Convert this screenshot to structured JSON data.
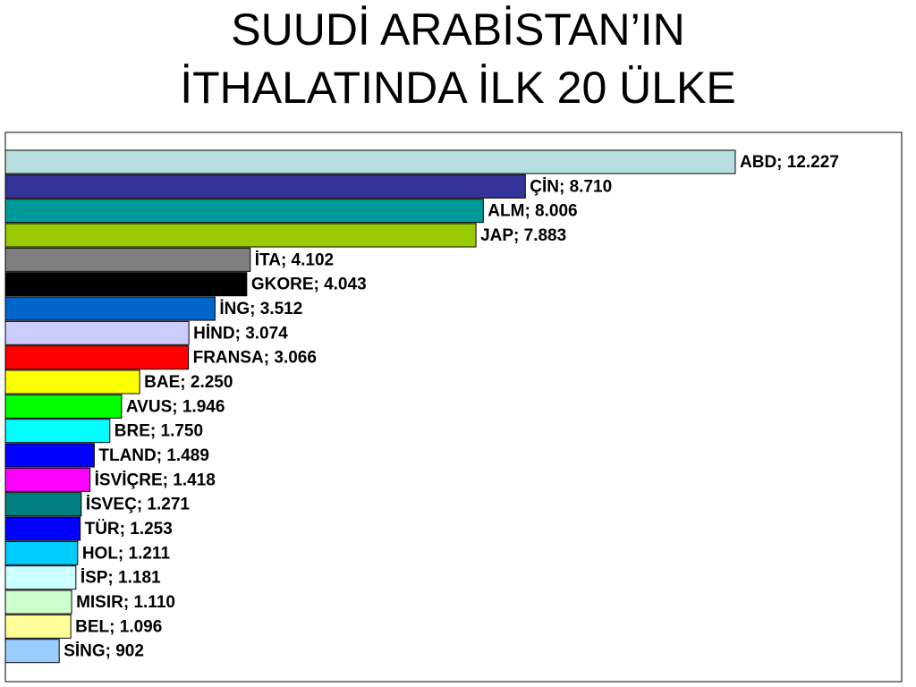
{
  "chart_data": {
    "type": "bar",
    "orientation": "horizontal",
    "title": [
      "SUUDİ ARABİSTAN’IN",
      "İTHALATINDA İLK 20 ÜLKE"
    ],
    "values": [
      12227,
      8710,
      8006,
      7883,
      4102,
      4043,
      3512,
      3074,
      3066,
      2250,
      1946,
      1750,
      1489,
      1418,
      1271,
      1253,
      1211,
      1181,
      1110,
      1096,
      902
    ],
    "value_labels": [
      "ABD; 12.227",
      "ÇİN; 8.710",
      "ALM; 8.006",
      "JAP; 7.883",
      "İTA; 4.102",
      "GKORE; 4.043",
      "İNG; 3.512",
      "HİND; 3.074",
      "FRANSA; 3.066",
      "BAE; 2.250",
      "AVUS; 1.946",
      "BRE; 1.750",
      "TLAND; 1.489",
      "İSVİÇRE; 1.418",
      "İSVEÇ; 1.271",
      "TÜR; 1.253",
      "HOL; 1.211",
      "İSP; 1.181",
      "MISIR; 1.110",
      "BEL; 1.096",
      "SİNG; 902"
    ],
    "colors": [
      "#b8dfe0",
      "#333399",
      "#009999",
      "#99cc00",
      "#808080",
      "#000000",
      "#0066cc",
      "#ccccff",
      "#ff0000",
      "#ffff00",
      "#00ff00",
      "#00ffff",
      "#0000ff",
      "#ff00ff",
      "#008080",
      "#0000ff",
      "#00ccff",
      "#ccffff",
      "#ccffcc",
      "#ffff99",
      "#99ccff"
    ]
  }
}
